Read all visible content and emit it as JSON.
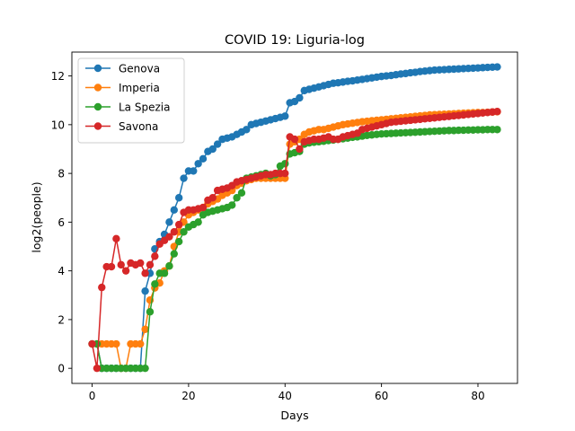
{
  "chart_data": {
    "type": "line",
    "title": "COVID 19: Liguria-log",
    "xlabel": "Days",
    "ylabel": "log2(people)",
    "xlim": [
      -4.2,
      88.2
    ],
    "ylim": [
      -0.62,
      12.98
    ],
    "xticks": [
      0,
      20,
      40,
      60,
      80
    ],
    "yticks": [
      0,
      2,
      4,
      6,
      8,
      10,
      12
    ],
    "grid": false,
    "legend_position": "upper-left",
    "series": [
      {
        "name": "Genova",
        "color": "#1f77b4",
        "values": [
          1,
          1,
          0,
          0,
          0,
          0,
          0,
          0,
          0,
          0,
          0,
          3.17,
          3.9,
          4.9,
          5.2,
          5.5,
          6.0,
          6.5,
          7.0,
          7.8,
          8.1,
          8.1,
          8.4,
          8.6,
          8.9,
          9.0,
          9.2,
          9.4,
          9.45,
          9.5,
          9.6,
          9.7,
          9.8,
          10.0,
          10.05,
          10.1,
          10.15,
          10.2,
          10.25,
          10.3,
          10.35,
          10.9,
          10.95,
          11.1,
          11.4,
          11.45,
          11.5,
          11.55,
          11.6,
          11.65,
          11.7,
          11.72,
          11.75,
          11.78,
          11.8,
          11.83,
          11.86,
          11.89,
          11.92,
          11.95,
          11.98,
          12.0,
          12.02,
          12.05,
          12.08,
          12.1,
          12.13,
          12.15,
          12.18,
          12.2,
          12.22,
          12.24,
          12.25,
          12.26,
          12.27,
          12.28,
          12.29,
          12.3,
          12.31,
          12.32,
          12.33,
          12.34,
          12.35,
          12.36,
          12.37
        ]
      },
      {
        "name": "Imperia",
        "color": "#ff7f0e",
        "values": [
          1,
          1,
          1,
          1,
          1,
          1,
          0,
          0,
          1,
          1,
          1,
          1.6,
          2.8,
          3.3,
          3.5,
          4.0,
          4.2,
          5.0,
          5.6,
          6.0,
          6.3,
          6.4,
          6.5,
          6.6,
          6.75,
          6.85,
          6.95,
          7.1,
          7.2,
          7.3,
          7.5,
          7.6,
          7.7,
          7.75,
          7.8,
          7.8,
          7.8,
          7.8,
          7.8,
          7.8,
          7.8,
          9.2,
          9.3,
          9.4,
          9.6,
          9.7,
          9.75,
          9.8,
          9.8,
          9.85,
          9.9,
          9.95,
          10.0,
          10.03,
          10.06,
          10.09,
          10.12,
          10.14,
          10.16,
          10.18,
          10.2,
          10.22,
          10.24,
          10.26,
          10.28,
          10.3,
          10.32,
          10.34,
          10.36,
          10.38,
          10.4,
          10.41,
          10.42,
          10.43,
          10.44,
          10.45,
          10.46,
          10.47,
          10.48,
          10.49,
          10.5,
          10.5,
          10.51,
          10.52,
          10.53
        ]
      },
      {
        "name": "La Spezia",
        "color": "#2ca02c",
        "values": [
          1,
          1,
          0,
          0,
          0,
          0,
          0,
          0,
          0,
          0,
          0,
          0,
          2.32,
          3.46,
          3.9,
          3.9,
          4.2,
          4.7,
          5.2,
          5.6,
          5.8,
          5.9,
          6.0,
          6.3,
          6.4,
          6.45,
          6.5,
          6.55,
          6.6,
          6.7,
          7.0,
          7.2,
          7.8,
          7.85,
          7.9,
          7.95,
          8.0,
          7.9,
          7.95,
          8.3,
          8.4,
          8.8,
          8.85,
          8.9,
          9.2,
          9.25,
          9.28,
          9.3,
          9.32,
          9.35,
          9.37,
          9.4,
          9.42,
          9.45,
          9.48,
          9.5,
          9.53,
          9.56,
          9.58,
          9.6,
          9.62,
          9.63,
          9.64,
          9.65,
          9.66,
          9.67,
          9.68,
          9.69,
          9.7,
          9.71,
          9.72,
          9.73,
          9.74,
          9.75,
          9.76,
          9.76,
          9.77,
          9.77,
          9.78,
          9.78,
          9.79,
          9.79,
          9.8,
          9.8,
          9.8
        ]
      },
      {
        "name": "Savona",
        "color": "#d62728",
        "values": [
          1,
          0,
          3.32,
          4.17,
          4.17,
          5.32,
          4.25,
          4.0,
          4.32,
          4.25,
          4.32,
          3.9,
          4.25,
          4.6,
          5.1,
          5.25,
          5.4,
          5.6,
          5.9,
          6.4,
          6.5,
          6.5,
          6.55,
          6.6,
          6.9,
          7.0,
          7.3,
          7.35,
          7.4,
          7.5,
          7.65,
          7.7,
          7.75,
          7.8,
          7.85,
          7.9,
          7.95,
          7.95,
          8.0,
          8.0,
          8.0,
          9.5,
          9.4,
          9.0,
          9.3,
          9.35,
          9.4,
          9.4,
          9.45,
          9.5,
          9.4,
          9.4,
          9.5,
          9.55,
          9.6,
          9.65,
          9.8,
          9.85,
          9.9,
          9.95,
          10.0,
          10.05,
          10.1,
          10.12,
          10.14,
          10.16,
          10.18,
          10.2,
          10.22,
          10.24,
          10.26,
          10.28,
          10.3,
          10.32,
          10.34,
          10.36,
          10.38,
          10.4,
          10.42,
          10.44,
          10.46,
          10.48,
          10.5,
          10.52,
          10.54
        ]
      }
    ]
  }
}
